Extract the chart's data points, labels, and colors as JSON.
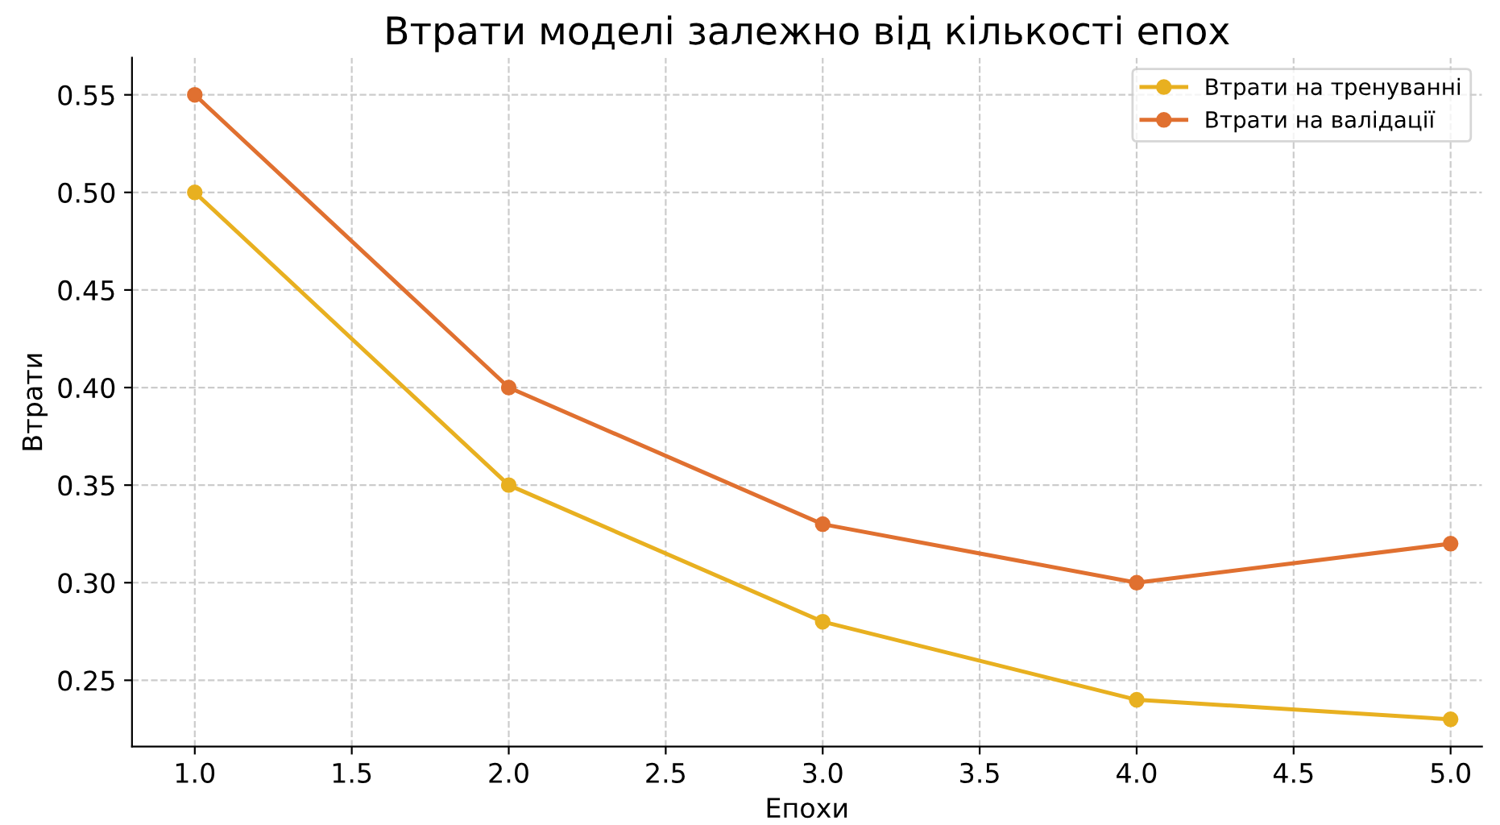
{
  "chart_data": {
    "type": "line",
    "title": "Втрати моделі залежно від кількості епох",
    "xlabel": "Епохи",
    "ylabel": "Втрати",
    "x": [
      1,
      2,
      3,
      4,
      5
    ],
    "series": [
      {
        "name": "Втрати на тренуванні",
        "color": "#e8b020",
        "values": [
          0.5,
          0.35,
          0.28,
          0.24,
          0.23
        ]
      },
      {
        "name": "Втрати на валідації",
        "color": "#e07030",
        "values": [
          0.55,
          0.4,
          0.33,
          0.3,
          0.32
        ]
      }
    ],
    "xlim": [
      0.8,
      5.1
    ],
    "xticks": [
      {
        "value": 1,
        "label": "1.0"
      },
      {
        "value": 1.5,
        "label": "1.5"
      },
      {
        "value": 2,
        "label": "2.0"
      },
      {
        "value": 2.5,
        "label": "2.5"
      },
      {
        "value": 3,
        "label": "3.0"
      },
      {
        "value": 3.5,
        "label": "3.5"
      },
      {
        "value": 4,
        "label": "4.0"
      },
      {
        "value": 4.5,
        "label": "4.5"
      },
      {
        "value": 5,
        "label": "5.0"
      }
    ],
    "ylim": [
      0.216,
      0.569
    ],
    "yticks": [
      {
        "value": 0.25,
        "label": "0.25"
      },
      {
        "value": 0.3,
        "label": "0.30"
      },
      {
        "value": 0.35,
        "label": "0.35"
      },
      {
        "value": 0.4,
        "label": "0.40"
      },
      {
        "value": 0.45,
        "label": "0.45"
      },
      {
        "value": 0.5,
        "label": "0.50"
      },
      {
        "value": 0.55,
        "label": "0.55"
      }
    ],
    "grid": true,
    "legend": "top right",
    "marker": "circle",
    "line_style": "solid"
  }
}
